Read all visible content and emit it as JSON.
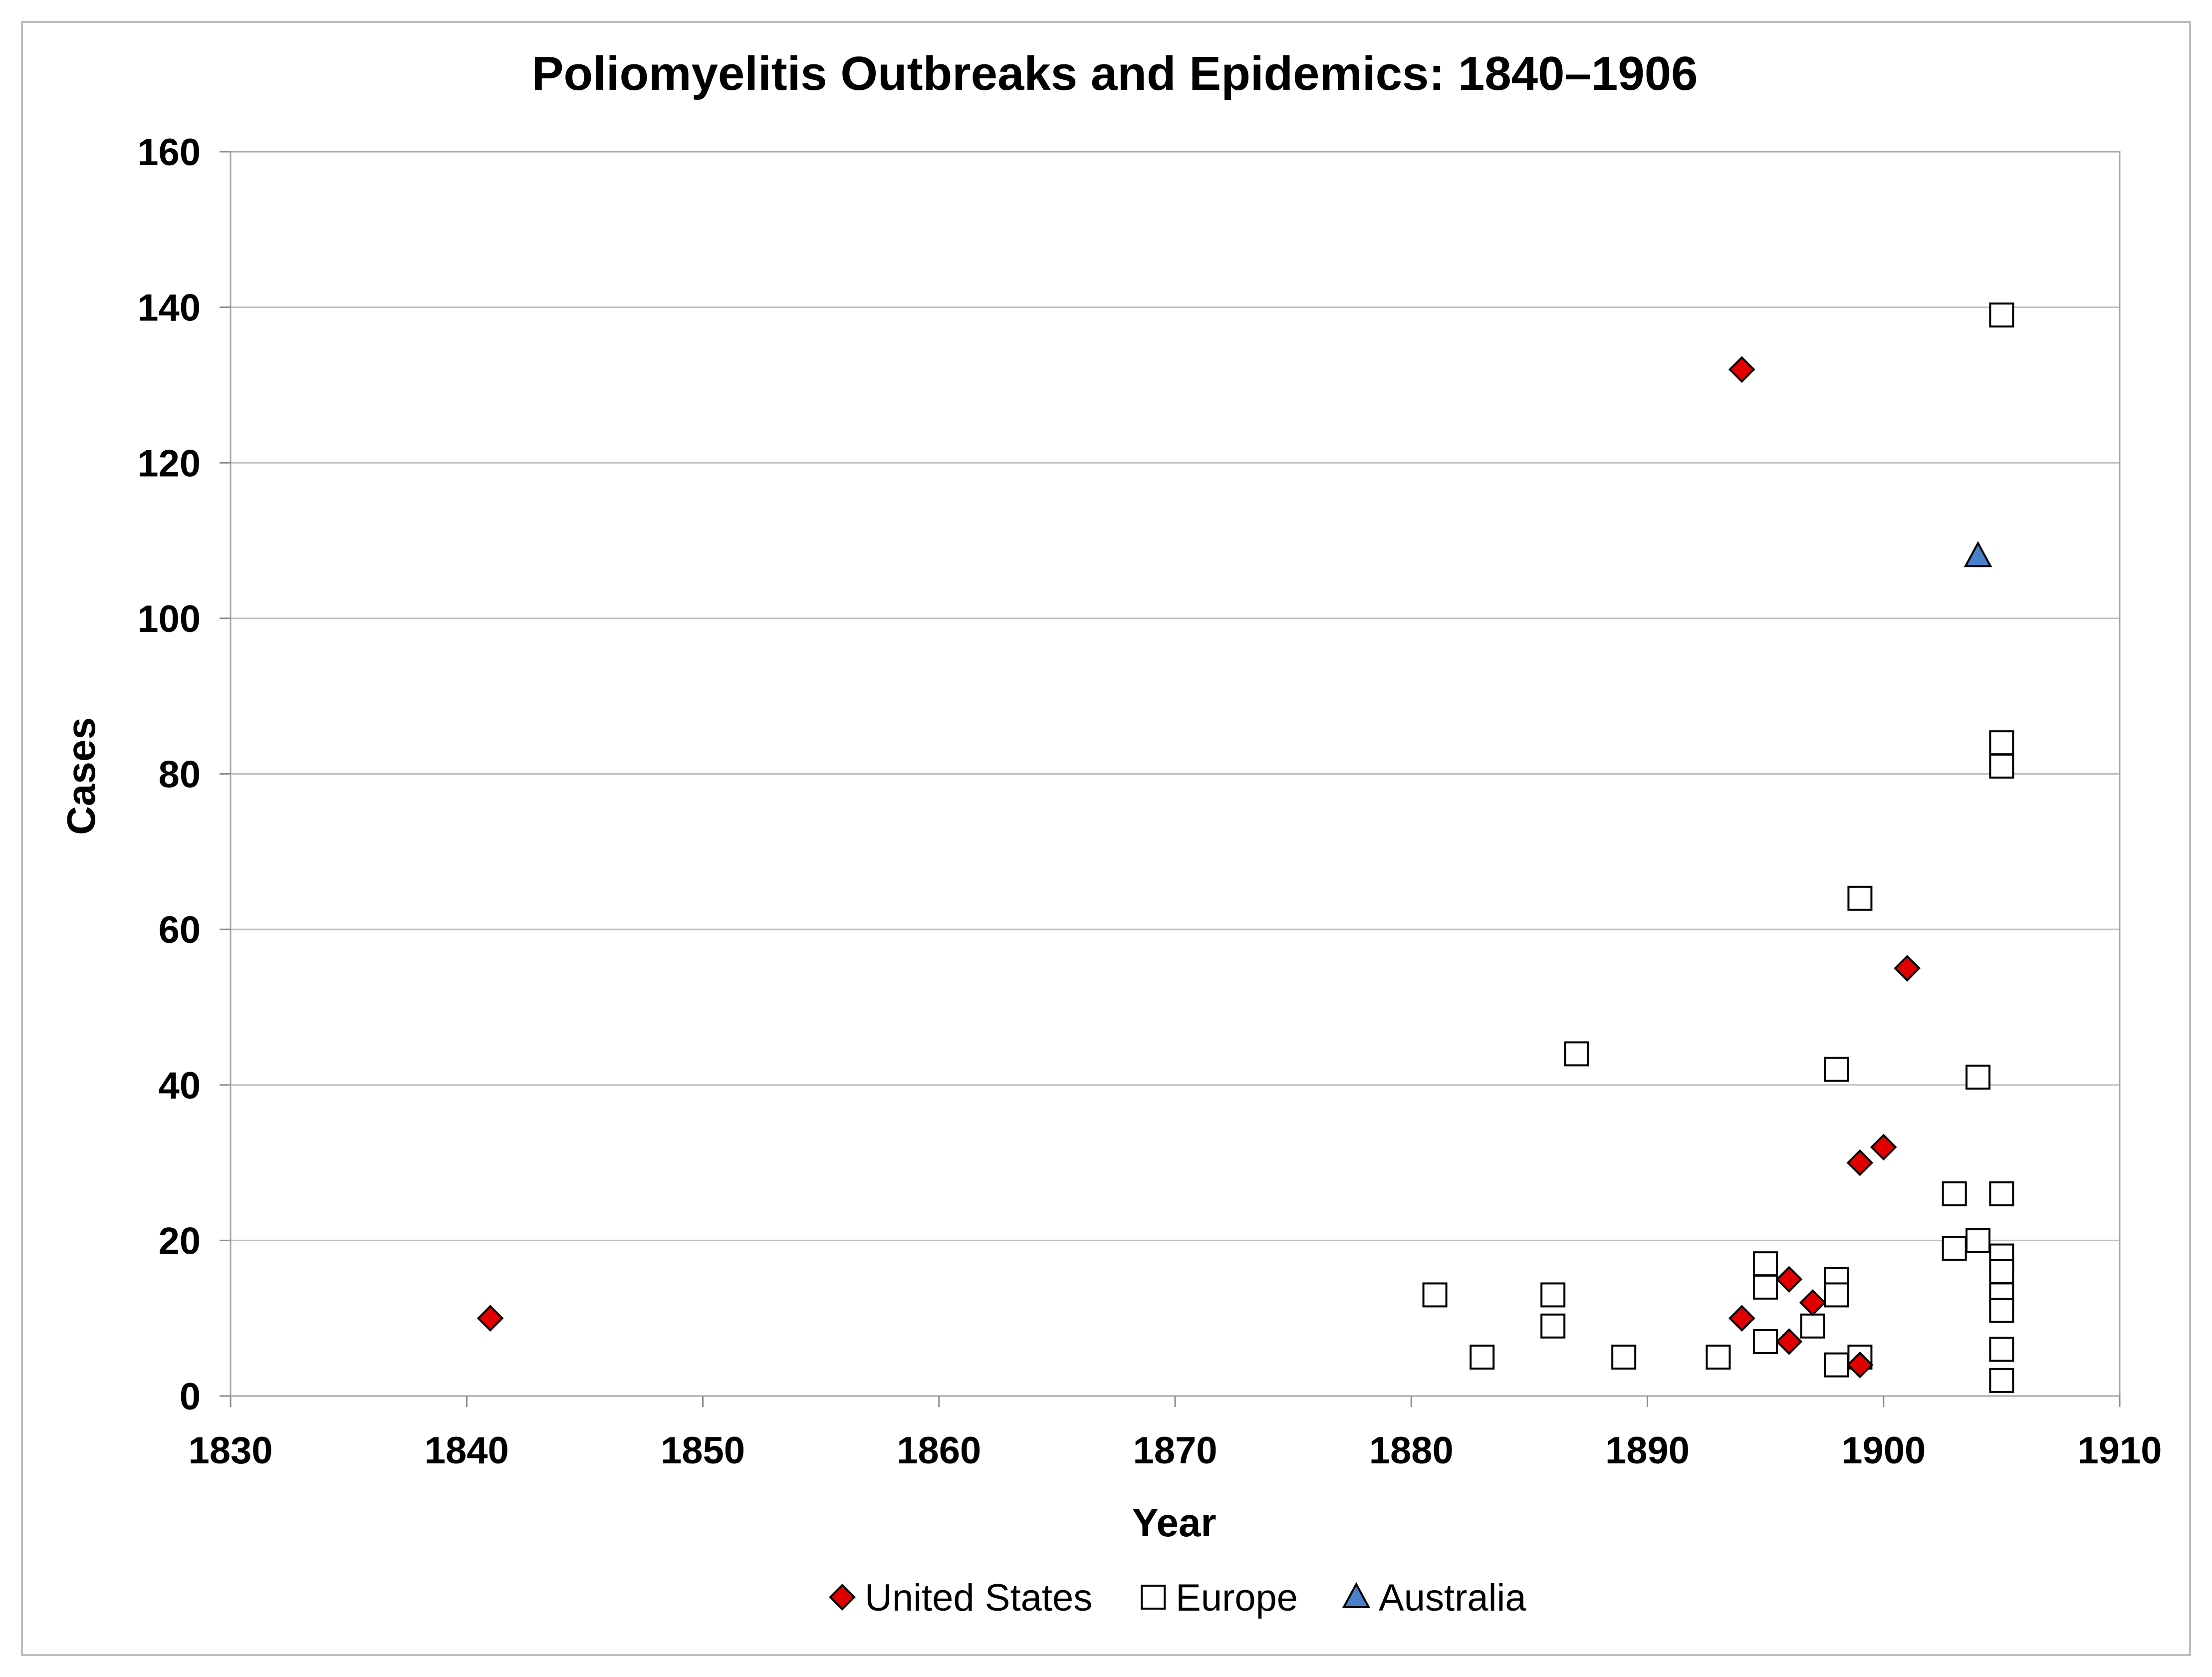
{
  "chart_data": {
    "type": "scatter",
    "title": "Poliomyelitis Outbreaks and Epidemics: 1840–1906",
    "xlabel": "Year",
    "ylabel": "Cases",
    "xlim": [
      1830,
      1910
    ],
    "ylim": [
      0,
      160
    ],
    "x_ticks": [
      "1830",
      "1840",
      "1850",
      "1860",
      "1870",
      "1880",
      "1890",
      "1900",
      "1910"
    ],
    "y_ticks": [
      "0",
      "20",
      "40",
      "60",
      "80",
      "100",
      "120",
      "140",
      "160"
    ],
    "grid": "horizontal",
    "legend_position": "bottom",
    "series": [
      {
        "name": "United States",
        "marker": "diamond",
        "color": "#e00000",
        "points": [
          [
            1841,
            10
          ],
          [
            1894,
            132
          ],
          [
            1894,
            10
          ],
          [
            1896,
            15
          ],
          [
            1896,
            7
          ],
          [
            1897,
            12
          ],
          [
            1899,
            4
          ],
          [
            1899,
            30
          ],
          [
            1900,
            32
          ],
          [
            1901,
            55
          ]
        ]
      },
      {
        "name": "Europe",
        "marker": "square",
        "color": "#ffffff",
        "points": [
          [
            1881,
            13
          ],
          [
            1883,
            5
          ],
          [
            1886,
            13
          ],
          [
            1886,
            9
          ],
          [
            1887,
            44
          ],
          [
            1889,
            5
          ],
          [
            1893,
            5
          ],
          [
            1895,
            17
          ],
          [
            1895,
            14
          ],
          [
            1895,
            7
          ],
          [
            1897,
            9
          ],
          [
            1898,
            15
          ],
          [
            1898,
            13
          ],
          [
            1898,
            42
          ],
          [
            1898,
            4
          ],
          [
            1899,
            64
          ],
          [
            1899,
            5
          ],
          [
            1903,
            26
          ],
          [
            1903,
            19
          ],
          [
            1904,
            41
          ],
          [
            1904,
            20
          ],
          [
            1905,
            139
          ],
          [
            1905,
            84
          ],
          [
            1905,
            81
          ],
          [
            1905,
            26
          ],
          [
            1905,
            18
          ],
          [
            1905,
            16
          ],
          [
            1905,
            13
          ],
          [
            1905,
            11
          ],
          [
            1905,
            6
          ],
          [
            1905,
            2
          ]
        ]
      },
      {
        "name": "Australia",
        "marker": "triangle",
        "color": "#4a7fc9",
        "points": [
          [
            1904,
            108
          ]
        ]
      }
    ]
  }
}
